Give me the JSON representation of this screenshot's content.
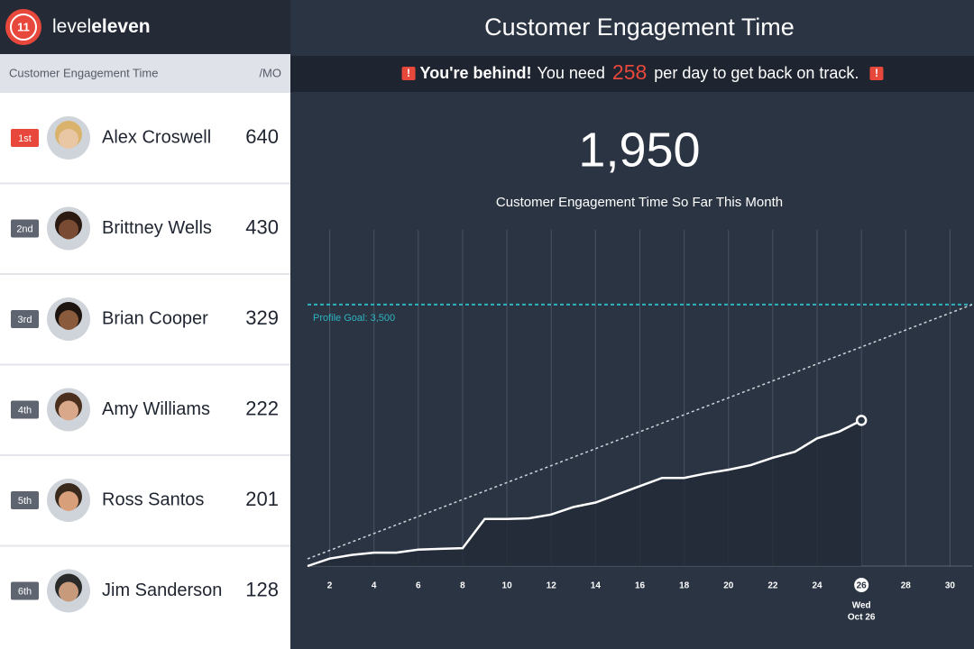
{
  "logo": {
    "mark": "11",
    "text_light": "level",
    "text_bold": "eleven"
  },
  "leaderboard": {
    "header": "Customer Engagement Time",
    "period": "/MO",
    "rows": [
      {
        "rank": "1st",
        "name": "Alex Croswell",
        "value": 640
      },
      {
        "rank": "2nd",
        "name": "Brittney Wells",
        "value": 430
      },
      {
        "rank": "3rd",
        "name": "Brian Cooper",
        "value": 329
      },
      {
        "rank": "4th",
        "name": "Amy Williams",
        "value": 222
      },
      {
        "rank": "5th",
        "name": "Ross Santos",
        "value": 201
      },
      {
        "rank": "6th",
        "name": "Jim Sanderson",
        "value": 128
      }
    ]
  },
  "banner": {
    "alert_icon": "!",
    "bold": "You're behind!",
    "before": "You need",
    "number": 258,
    "after": "per day to get back on track."
  },
  "total": {
    "value": "1,950",
    "caption": "Customer Engagement Time So Far This Month"
  },
  "chart_data": {
    "type": "line",
    "title": "Customer Engagement Time",
    "x": [
      1,
      2,
      3,
      4,
      5,
      6,
      7,
      8,
      9,
      10,
      11,
      12,
      13,
      14,
      15,
      16,
      17,
      18,
      19,
      20,
      21,
      22,
      23,
      24,
      25,
      26
    ],
    "values": [
      0,
      100,
      150,
      180,
      180,
      220,
      230,
      240,
      630,
      630,
      640,
      690,
      790,
      850,
      960,
      1070,
      1180,
      1180,
      1240,
      1290,
      1350,
      1450,
      1530,
      1710,
      1800,
      1950
    ],
    "color": "#ffffff",
    "xlim": [
      1,
      31
    ],
    "ylim": [
      0,
      4500
    ],
    "xticks": [
      2,
      4,
      6,
      8,
      10,
      12,
      14,
      16,
      18,
      20,
      22,
      24,
      26,
      28,
      30
    ],
    "grid": true,
    "goal": {
      "value": 3500,
      "label": "Profile Goal: 3,500",
      "color": "#2fb3c0"
    },
    "highlight": {
      "x": 26,
      "weekday": "Wed",
      "date": "Oct 26"
    }
  }
}
